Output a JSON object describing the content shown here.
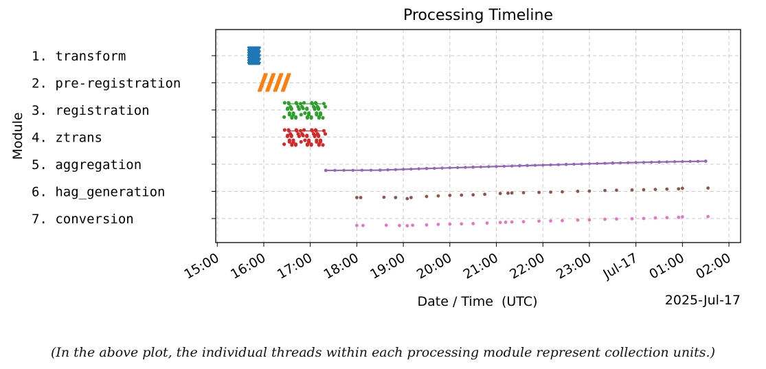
{
  "chart_data": {
    "type": "scatter",
    "title": "Processing Timeline",
    "xlabel": "Date / Time  (UTC)",
    "ylabel": "Module",
    "x_offset_label": "2025-Jul-17",
    "xlim": [
      "2025-07-16 14:58",
      "2025-07-17 02:15"
    ],
    "x_ticks": [
      "15:00",
      "16:00",
      "17:00",
      "18:00",
      "19:00",
      "20:00",
      "21:00",
      "22:00",
      "23:00",
      "Jul-17",
      "01:00",
      "02:00"
    ],
    "categories": [
      "1. transform",
      "2. pre-registration",
      "3. registration",
      "4. ztrans",
      "5. aggregation",
      "6. hag_generation",
      "7. conversion"
    ],
    "grid": true,
    "series": [
      {
        "category": "1. transform",
        "color": "#1f77b4",
        "style": "dense-threads",
        "start": "2025-07-16 15:40",
        "end": "2025-07-16 15:55"
      },
      {
        "category": "2. pre-registration",
        "color": "#ff7f0e",
        "style": "diagonal-threads",
        "x": [
          "2025-07-16 15:53",
          "2025-07-16 16:03",
          "2025-07-16 16:13",
          "2025-07-16 16:23"
        ],
        "duration_min": 8
      },
      {
        "category": "3. registration",
        "color": "#2ca02c",
        "style": "clustered-points",
        "x": [
          "2025-07-16 16:30",
          "2025-07-16 16:35",
          "2025-07-16 16:40",
          "2025-07-16 16:45",
          "2025-07-16 16:55",
          "2025-07-16 17:00",
          "2025-07-16 17:05",
          "2025-07-16 17:10",
          "2025-07-16 17:15"
        ]
      },
      {
        "category": "4. ztrans",
        "color": "#d62728",
        "style": "clustered-points",
        "x": [
          "2025-07-16 16:30",
          "2025-07-16 16:35",
          "2025-07-16 16:40",
          "2025-07-16 16:45",
          "2025-07-16 16:55",
          "2025-07-16 17:00",
          "2025-07-16 17:05",
          "2025-07-16 17:10",
          "2025-07-16 17:15"
        ]
      },
      {
        "category": "5. aggregation",
        "color": "#9467bd",
        "style": "sloped-line",
        "x": [
          "2025-07-16 17:20",
          "2025-07-16 18:30",
          "2025-07-16 19:30",
          "2025-07-16 20:30",
          "2025-07-16 21:30",
          "2025-07-16 22:30",
          "2025-07-16 23:30",
          "2025-07-17 00:30",
          "2025-07-17 01:30"
        ],
        "offset": [
          0.0,
          0.01,
          0.07,
          0.12,
          0.17,
          0.22,
          0.27,
          0.31,
          0.34
        ]
      },
      {
        "category": "6. hag_generation",
        "color": "#8c564b",
        "style": "sparse-points",
        "x": [
          "2025-07-16 18:00",
          "2025-07-16 18:05",
          "2025-07-16 18:35",
          "2025-07-16 18:50",
          "2025-07-16 19:05",
          "2025-07-16 19:10",
          "2025-07-16 19:30",
          "2025-07-16 19:45",
          "2025-07-16 20:00",
          "2025-07-16 20:15",
          "2025-07-16 20:30",
          "2025-07-16 20:45",
          "2025-07-16 21:05",
          "2025-07-16 21:15",
          "2025-07-16 21:20",
          "2025-07-16 21:35",
          "2025-07-16 21:55",
          "2025-07-16 22:10",
          "2025-07-16 22:25",
          "2025-07-16 22:45",
          "2025-07-16 23:00",
          "2025-07-16 23:20",
          "2025-07-16 23:35",
          "2025-07-16 23:55",
          "2025-07-17 00:10",
          "2025-07-17 00:25",
          "2025-07-17 00:40",
          "2025-07-17 00:55",
          "2025-07-17 01:00",
          "2025-07-17 01:33"
        ],
        "offset": [
          0.0,
          0.0,
          0.01,
          0.0,
          -0.04,
          0.0,
          0.04,
          0.06,
          0.08,
          0.09,
          0.1,
          0.12,
          0.15,
          0.16,
          0.17,
          0.18,
          0.19,
          0.2,
          0.21,
          0.23,
          0.24,
          0.26,
          0.27,
          0.28,
          0.29,
          0.3,
          0.31,
          0.32,
          0.34,
          0.35
        ]
      },
      {
        "category": "7. conversion",
        "color": "#e377c2",
        "style": "sparse-points",
        "x": [
          "2025-07-16 18:00",
          "2025-07-16 18:08",
          "2025-07-16 18:38",
          "2025-07-16 18:55",
          "2025-07-16 19:05",
          "2025-07-16 19:12",
          "2025-07-16 19:30",
          "2025-07-16 19:45",
          "2025-07-16 20:00",
          "2025-07-16 20:15",
          "2025-07-16 20:30",
          "2025-07-16 20:48",
          "2025-07-16 21:05",
          "2025-07-16 21:12",
          "2025-07-16 21:20",
          "2025-07-16 21:35",
          "2025-07-16 21:55",
          "2025-07-16 22:10",
          "2025-07-16 22:25",
          "2025-07-16 22:45",
          "2025-07-16 23:00",
          "2025-07-16 23:20",
          "2025-07-16 23:35",
          "2025-07-16 23:55",
          "2025-07-17 00:10",
          "2025-07-17 00:25",
          "2025-07-17 00:40",
          "2025-07-17 00:55",
          "2025-07-17 01:00",
          "2025-07-17 01:33"
        ],
        "offset": [
          -0.03,
          -0.03,
          -0.02,
          -0.03,
          -0.04,
          -0.02,
          -0.01,
          0.01,
          0.02,
          0.03,
          0.04,
          0.06,
          0.08,
          0.09,
          0.1,
          0.11,
          0.13,
          0.14,
          0.15,
          0.17,
          0.18,
          0.2,
          0.21,
          0.22,
          0.23,
          0.25,
          0.26,
          0.27,
          0.29,
          0.3
        ]
      }
    ]
  },
  "caption": "(In the above plot, the individual threads within each processing module represent collection units.)"
}
